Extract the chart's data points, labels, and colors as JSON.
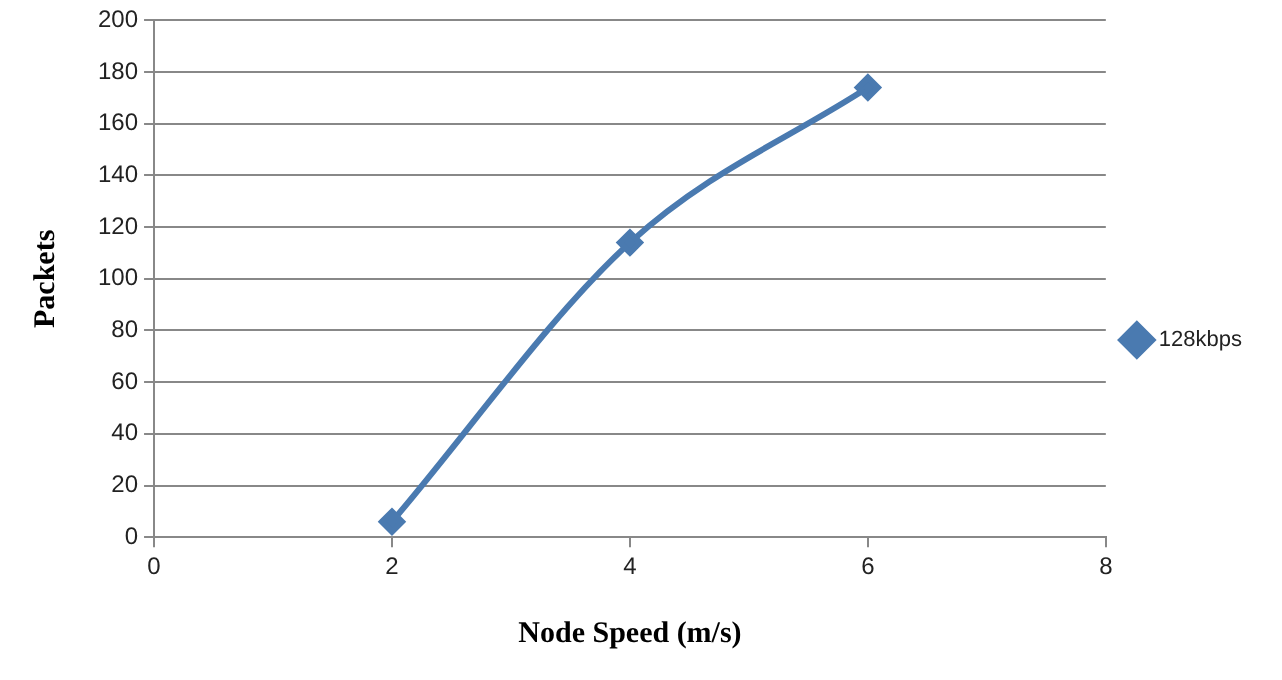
{
  "chart_data": {
    "type": "line",
    "xlabel": "Node Speed (m/s)",
    "ylabel": "Packets",
    "x": [
      2,
      4,
      6
    ],
    "series": [
      {
        "name": "128kbps",
        "color": "#4a7ab0",
        "values": [
          6,
          114,
          174
        ]
      }
    ],
    "xlim": [
      0,
      8
    ],
    "xticks": [
      0,
      2,
      4,
      6,
      8
    ],
    "ylim": [
      0,
      200
    ],
    "yticks": [
      0,
      20,
      40,
      60,
      80,
      100,
      120,
      140,
      160,
      180,
      200
    ],
    "grid": "y",
    "legend": "right",
    "marker": "diamond",
    "line_style": "solid"
  }
}
